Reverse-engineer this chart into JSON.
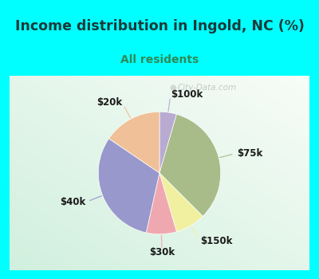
{
  "title": "Income distribution in Ingold, NC (%)",
  "subtitle": "All residents",
  "title_color": "#1a3a3a",
  "subtitle_color": "#2e8b57",
  "background_cyan": "#00ffff",
  "background_inner_tl": "#f0faf5",
  "background_inner_br": "#c8e8d8",
  "labels": [
    "$100k",
    "$75k",
    "$150k",
    "$30k",
    "$40k",
    "$20k"
  ],
  "sizes": [
    4.5,
    33.0,
    8.0,
    8.0,
    31.0,
    15.5
  ],
  "colors": [
    "#b8aad0",
    "#a8bc8a",
    "#f0f0a0",
    "#f0a8b0",
    "#9898cc",
    "#f0c098"
  ],
  "startangle": 90,
  "watermark": "City-Data.com"
}
